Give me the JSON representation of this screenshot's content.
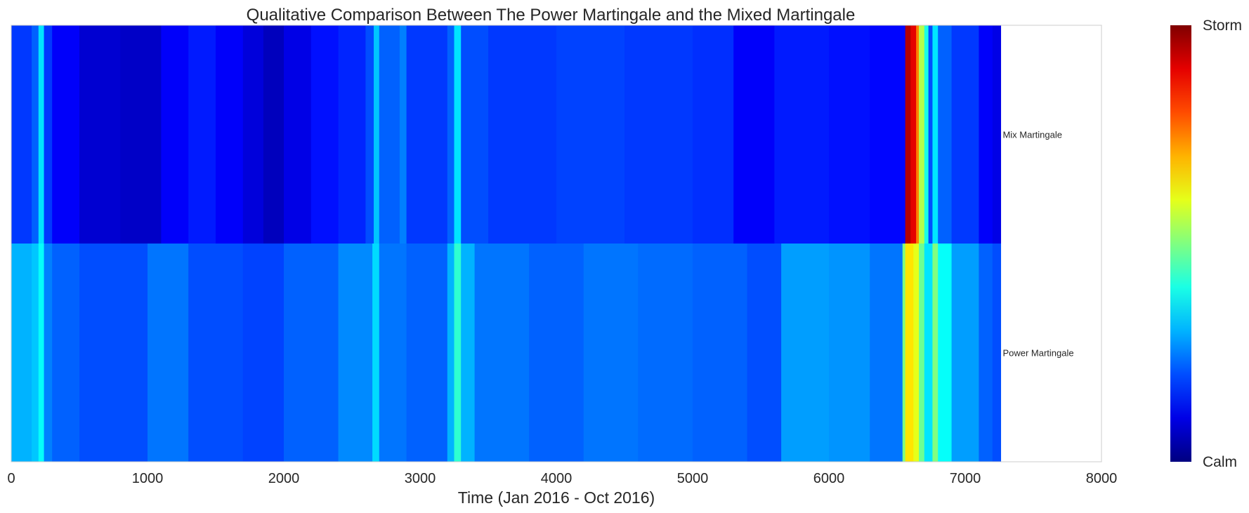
{
  "chart_data": {
    "type": "heatmap",
    "title": "Qualitative Comparison Between The Power Martingale and the Mixed Martingale",
    "xlabel": "Time (Jan 2016 - Oct 2016)",
    "ylabel": "",
    "xlim": [
      0,
      8000
    ],
    "x_ticks": [
      0,
      1000,
      2000,
      3000,
      4000,
      5000,
      6000,
      7000,
      8000
    ],
    "data_extent": [
      0,
      7260
    ],
    "grid": false,
    "colormap": "jet",
    "colorbar": {
      "min_label": "Calm",
      "max_label": "Storm",
      "position": "right"
    },
    "rows": [
      {
        "name": "Mix Martingale",
        "segments": [
          [
            0,
            0.18
          ],
          [
            150,
            0.22
          ],
          [
            200,
            0.35
          ],
          [
            240,
            0.18
          ],
          [
            300,
            0.12
          ],
          [
            500,
            0.08
          ],
          [
            800,
            0.07
          ],
          [
            1100,
            0.12
          ],
          [
            1300,
            0.15
          ],
          [
            1500,
            0.12
          ],
          [
            1700,
            0.09
          ],
          [
            1850,
            0.06
          ],
          [
            2000,
            0.1
          ],
          [
            2200,
            0.14
          ],
          [
            2400,
            0.16
          ],
          [
            2600,
            0.2
          ],
          [
            2660,
            0.32
          ],
          [
            2700,
            0.22
          ],
          [
            2850,
            0.25
          ],
          [
            2900,
            0.18
          ],
          [
            3200,
            0.22
          ],
          [
            3250,
            0.35
          ],
          [
            3300,
            0.2
          ],
          [
            3500,
            0.18
          ],
          [
            4000,
            0.19
          ],
          [
            4500,
            0.18
          ],
          [
            5000,
            0.17
          ],
          [
            5300,
            0.12
          ],
          [
            5600,
            0.15
          ],
          [
            6000,
            0.14
          ],
          [
            6300,
            0.13
          ],
          [
            6560,
            0.95
          ],
          [
            6600,
            0.9
          ],
          [
            6640,
            0.75
          ],
          [
            6660,
            0.55
          ],
          [
            6700,
            0.4
          ],
          [
            6730,
            0.2
          ],
          [
            6760,
            0.35
          ],
          [
            6800,
            0.22
          ],
          [
            6900,
            0.18
          ],
          [
            7100,
            0.12
          ],
          [
            7200,
            0.1
          ]
        ]
      },
      {
        "name": "Power Martingale",
        "segments": [
          [
            0,
            0.3
          ],
          [
            150,
            0.32
          ],
          [
            200,
            0.38
          ],
          [
            240,
            0.25
          ],
          [
            300,
            0.22
          ],
          [
            500,
            0.2
          ],
          [
            1000,
            0.24
          ],
          [
            1300,
            0.2
          ],
          [
            1700,
            0.19
          ],
          [
            2000,
            0.22
          ],
          [
            2400,
            0.26
          ],
          [
            2650,
            0.34
          ],
          [
            2700,
            0.24
          ],
          [
            2900,
            0.22
          ],
          [
            3200,
            0.3
          ],
          [
            3250,
            0.42
          ],
          [
            3300,
            0.3
          ],
          [
            3400,
            0.24
          ],
          [
            3800,
            0.22
          ],
          [
            4200,
            0.24
          ],
          [
            4600,
            0.23
          ],
          [
            5000,
            0.22
          ],
          [
            5400,
            0.2
          ],
          [
            5650,
            0.28
          ],
          [
            6000,
            0.27
          ],
          [
            6300,
            0.24
          ],
          [
            6540,
            0.5
          ],
          [
            6560,
            0.65
          ],
          [
            6620,
            0.6
          ],
          [
            6660,
            0.48
          ],
          [
            6700,
            0.35
          ],
          [
            6760,
            0.5
          ],
          [
            6800,
            0.38
          ],
          [
            6900,
            0.28
          ],
          [
            7100,
            0.22
          ],
          [
            7200,
            0.2
          ]
        ]
      }
    ]
  }
}
